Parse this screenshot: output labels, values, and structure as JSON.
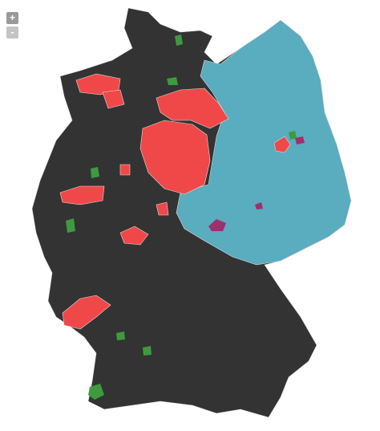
{
  "zoom_controls": {
    "zoom_in": "+",
    "zoom_out": "-"
  }
}
